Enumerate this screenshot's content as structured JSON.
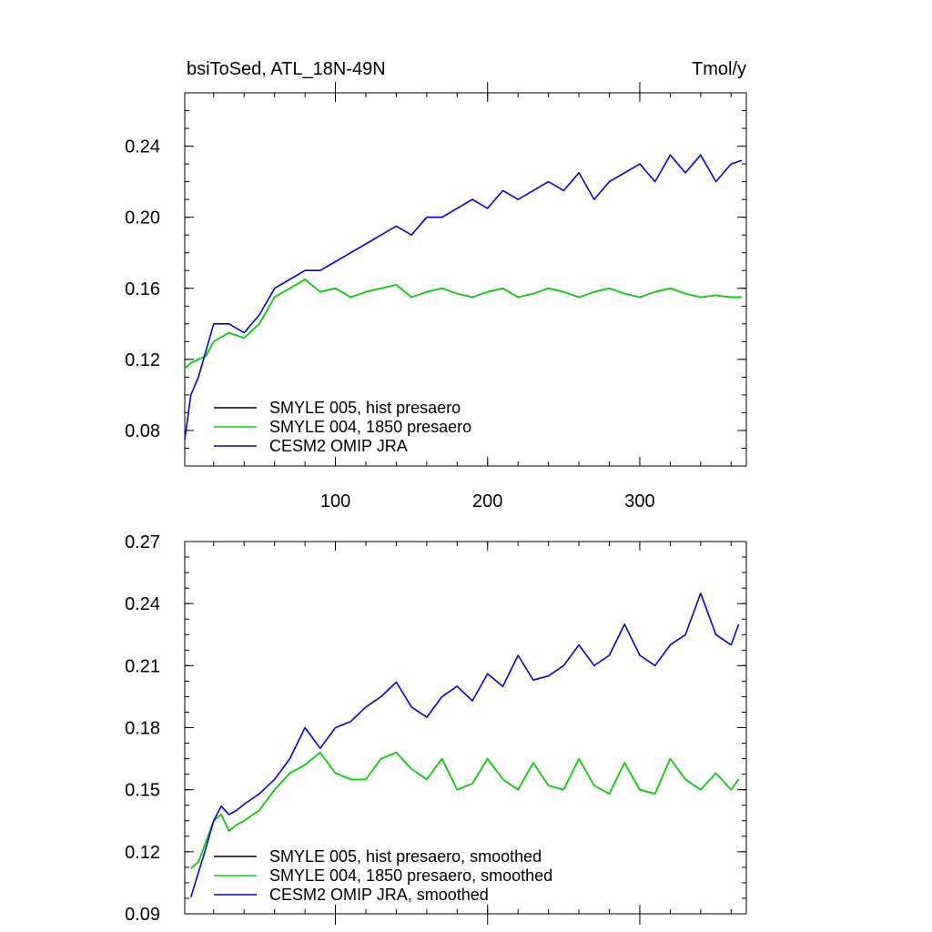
{
  "chart_data": [
    {
      "type": "line",
      "title": "bsiToSed, ATL_18N-49N",
      "units": "Tmol/y",
      "xlabel": "",
      "ylabel": "",
      "xlim": [
        1,
        370
      ],
      "ylim": [
        0.06,
        0.27
      ],
      "xticks": [
        100,
        200,
        300
      ],
      "yticks": [
        0.08,
        0.12,
        0.16,
        0.2,
        0.24
      ],
      "ytick_labels": [
        "0.08",
        "0.12",
        "0.16",
        "0.20",
        "0.24"
      ],
      "legend_position": "bottom-left",
      "series": [
        {
          "name": "SMYLE 005, hist presaero",
          "color": "#000000",
          "x": [
            1,
            5,
            10,
            15,
            20,
            30,
            40,
            50,
            60,
            70,
            80,
            90,
            100,
            110,
            120,
            130,
            140,
            150,
            160,
            170,
            180,
            190,
            200,
            210,
            220,
            230,
            240,
            250,
            260,
            270,
            280,
            290,
            300,
            310,
            320,
            330,
            340,
            350,
            360,
            367
          ],
          "y": [
            0.115,
            0.118,
            0.12,
            0.122,
            0.13,
            0.135,
            0.132,
            0.14,
            0.155,
            0.16,
            0.165,
            0.158,
            0.16,
            0.155,
            0.158,
            0.16,
            0.162,
            0.155,
            0.158,
            0.16,
            0.157,
            0.155,
            0.158,
            0.16,
            0.155,
            0.157,
            0.16,
            0.158,
            0.155,
            0.158,
            0.16,
            0.157,
            0.155,
            0.158,
            0.16,
            0.157,
            0.155,
            0.156,
            0.155,
            0.155
          ]
        },
        {
          "name": "SMYLE 004, 1850 presaero",
          "color": "#00dd00",
          "x": [
            1,
            5,
            10,
            15,
            20,
            30,
            40,
            50,
            60,
            70,
            80,
            90,
            100,
            110,
            120,
            130,
            140,
            150,
            160,
            170,
            180,
            190,
            200,
            210,
            220,
            230,
            240,
            250,
            260,
            270,
            280,
            290,
            300,
            310,
            320,
            330,
            340,
            350,
            360,
            367
          ],
          "y": [
            0.115,
            0.118,
            0.12,
            0.122,
            0.13,
            0.135,
            0.132,
            0.14,
            0.155,
            0.16,
            0.165,
            0.158,
            0.16,
            0.155,
            0.158,
            0.16,
            0.162,
            0.155,
            0.158,
            0.16,
            0.157,
            0.155,
            0.158,
            0.16,
            0.155,
            0.157,
            0.16,
            0.158,
            0.155,
            0.158,
            0.16,
            0.157,
            0.155,
            0.158,
            0.16,
            0.157,
            0.155,
            0.156,
            0.155,
            0.155
          ]
        },
        {
          "name": "CESM2 OMIP JRA",
          "color": "#0000dd",
          "x": [
            1,
            5,
            10,
            15,
            20,
            30,
            40,
            50,
            60,
            70,
            80,
            90,
            100,
            110,
            120,
            130,
            140,
            150,
            160,
            170,
            180,
            190,
            200,
            210,
            220,
            230,
            240,
            250,
            260,
            270,
            280,
            290,
            300,
            310,
            320,
            330,
            340,
            350,
            360,
            367
          ],
          "y": [
            0.075,
            0.1,
            0.11,
            0.125,
            0.14,
            0.14,
            0.135,
            0.145,
            0.16,
            0.165,
            0.17,
            0.17,
            0.175,
            0.18,
            0.185,
            0.19,
            0.195,
            0.19,
            0.2,
            0.2,
            0.205,
            0.21,
            0.205,
            0.215,
            0.21,
            0.215,
            0.22,
            0.215,
            0.225,
            0.21,
            0.22,
            0.225,
            0.23,
            0.22,
            0.235,
            0.225,
            0.235,
            0.22,
            0.23,
            0.232
          ]
        }
      ]
    },
    {
      "type": "line",
      "title": "",
      "units": "",
      "xlabel": "",
      "ylabel": "",
      "xlim": [
        1,
        370
      ],
      "ylim": [
        0.09,
        0.27
      ],
      "xticks": [
        100,
        200,
        300
      ],
      "yticks": [
        0.09,
        0.12,
        0.15,
        0.18,
        0.21,
        0.24,
        0.27
      ],
      "ytick_labels": [
        "0.09",
        "0.12",
        "0.15",
        "0.18",
        "0.21",
        "0.24",
        "0.27"
      ],
      "legend_position": "bottom-left",
      "series": [
        {
          "name": "SMYLE 005, hist presaero, smoothed",
          "color": "#000000",
          "x": [
            5,
            10,
            15,
            20,
            25,
            30,
            35,
            40,
            50,
            60,
            70,
            80,
            90,
            100,
            110,
            120,
            130,
            140,
            150,
            160,
            170,
            180,
            190,
            200,
            210,
            220,
            230,
            240,
            250,
            260,
            270,
            280,
            290,
            300,
            310,
            320,
            330,
            340,
            350,
            360,
            365
          ],
          "y": [
            0.112,
            0.115,
            0.125,
            0.135,
            0.138,
            0.13,
            0.133,
            0.135,
            0.14,
            0.15,
            0.158,
            0.162,
            0.168,
            0.158,
            0.155,
            0.155,
            0.165,
            0.168,
            0.16,
            0.155,
            0.165,
            0.15,
            0.153,
            0.165,
            0.155,
            0.15,
            0.163,
            0.152,
            0.15,
            0.165,
            0.152,
            0.148,
            0.163,
            0.15,
            0.148,
            0.165,
            0.155,
            0.15,
            0.158,
            0.15,
            0.155
          ]
        },
        {
          "name": "SMYLE 004, 1850 presaero, smoothed",
          "color": "#00dd00",
          "x": [
            5,
            10,
            15,
            20,
            25,
            30,
            35,
            40,
            50,
            60,
            70,
            80,
            90,
            100,
            110,
            120,
            130,
            140,
            150,
            160,
            170,
            180,
            190,
            200,
            210,
            220,
            230,
            240,
            250,
            260,
            270,
            280,
            290,
            300,
            310,
            320,
            330,
            340,
            350,
            360,
            365
          ],
          "y": [
            0.112,
            0.115,
            0.125,
            0.135,
            0.138,
            0.13,
            0.133,
            0.135,
            0.14,
            0.15,
            0.158,
            0.162,
            0.168,
            0.158,
            0.155,
            0.155,
            0.165,
            0.168,
            0.16,
            0.155,
            0.165,
            0.15,
            0.153,
            0.165,
            0.155,
            0.15,
            0.163,
            0.152,
            0.15,
            0.165,
            0.152,
            0.148,
            0.163,
            0.15,
            0.148,
            0.165,
            0.155,
            0.15,
            0.158,
            0.15,
            0.155
          ]
        },
        {
          "name": "CESM2 OMIP JRA, smoothed",
          "color": "#0000dd",
          "x": [
            5,
            10,
            15,
            20,
            25,
            30,
            35,
            40,
            50,
            60,
            70,
            80,
            90,
            100,
            110,
            120,
            130,
            140,
            150,
            160,
            170,
            180,
            190,
            200,
            210,
            220,
            230,
            240,
            250,
            260,
            270,
            280,
            290,
            300,
            310,
            320,
            330,
            340,
            350,
            360,
            365
          ],
          "y": [
            0.098,
            0.11,
            0.122,
            0.135,
            0.142,
            0.138,
            0.14,
            0.143,
            0.148,
            0.155,
            0.165,
            0.18,
            0.17,
            0.18,
            0.183,
            0.19,
            0.195,
            0.202,
            0.19,
            0.185,
            0.195,
            0.2,
            0.193,
            0.206,
            0.2,
            0.215,
            0.203,
            0.205,
            0.21,
            0.22,
            0.21,
            0.215,
            0.23,
            0.215,
            0.21,
            0.22,
            0.225,
            0.245,
            0.225,
            0.22,
            0.23
          ]
        }
      ]
    }
  ]
}
